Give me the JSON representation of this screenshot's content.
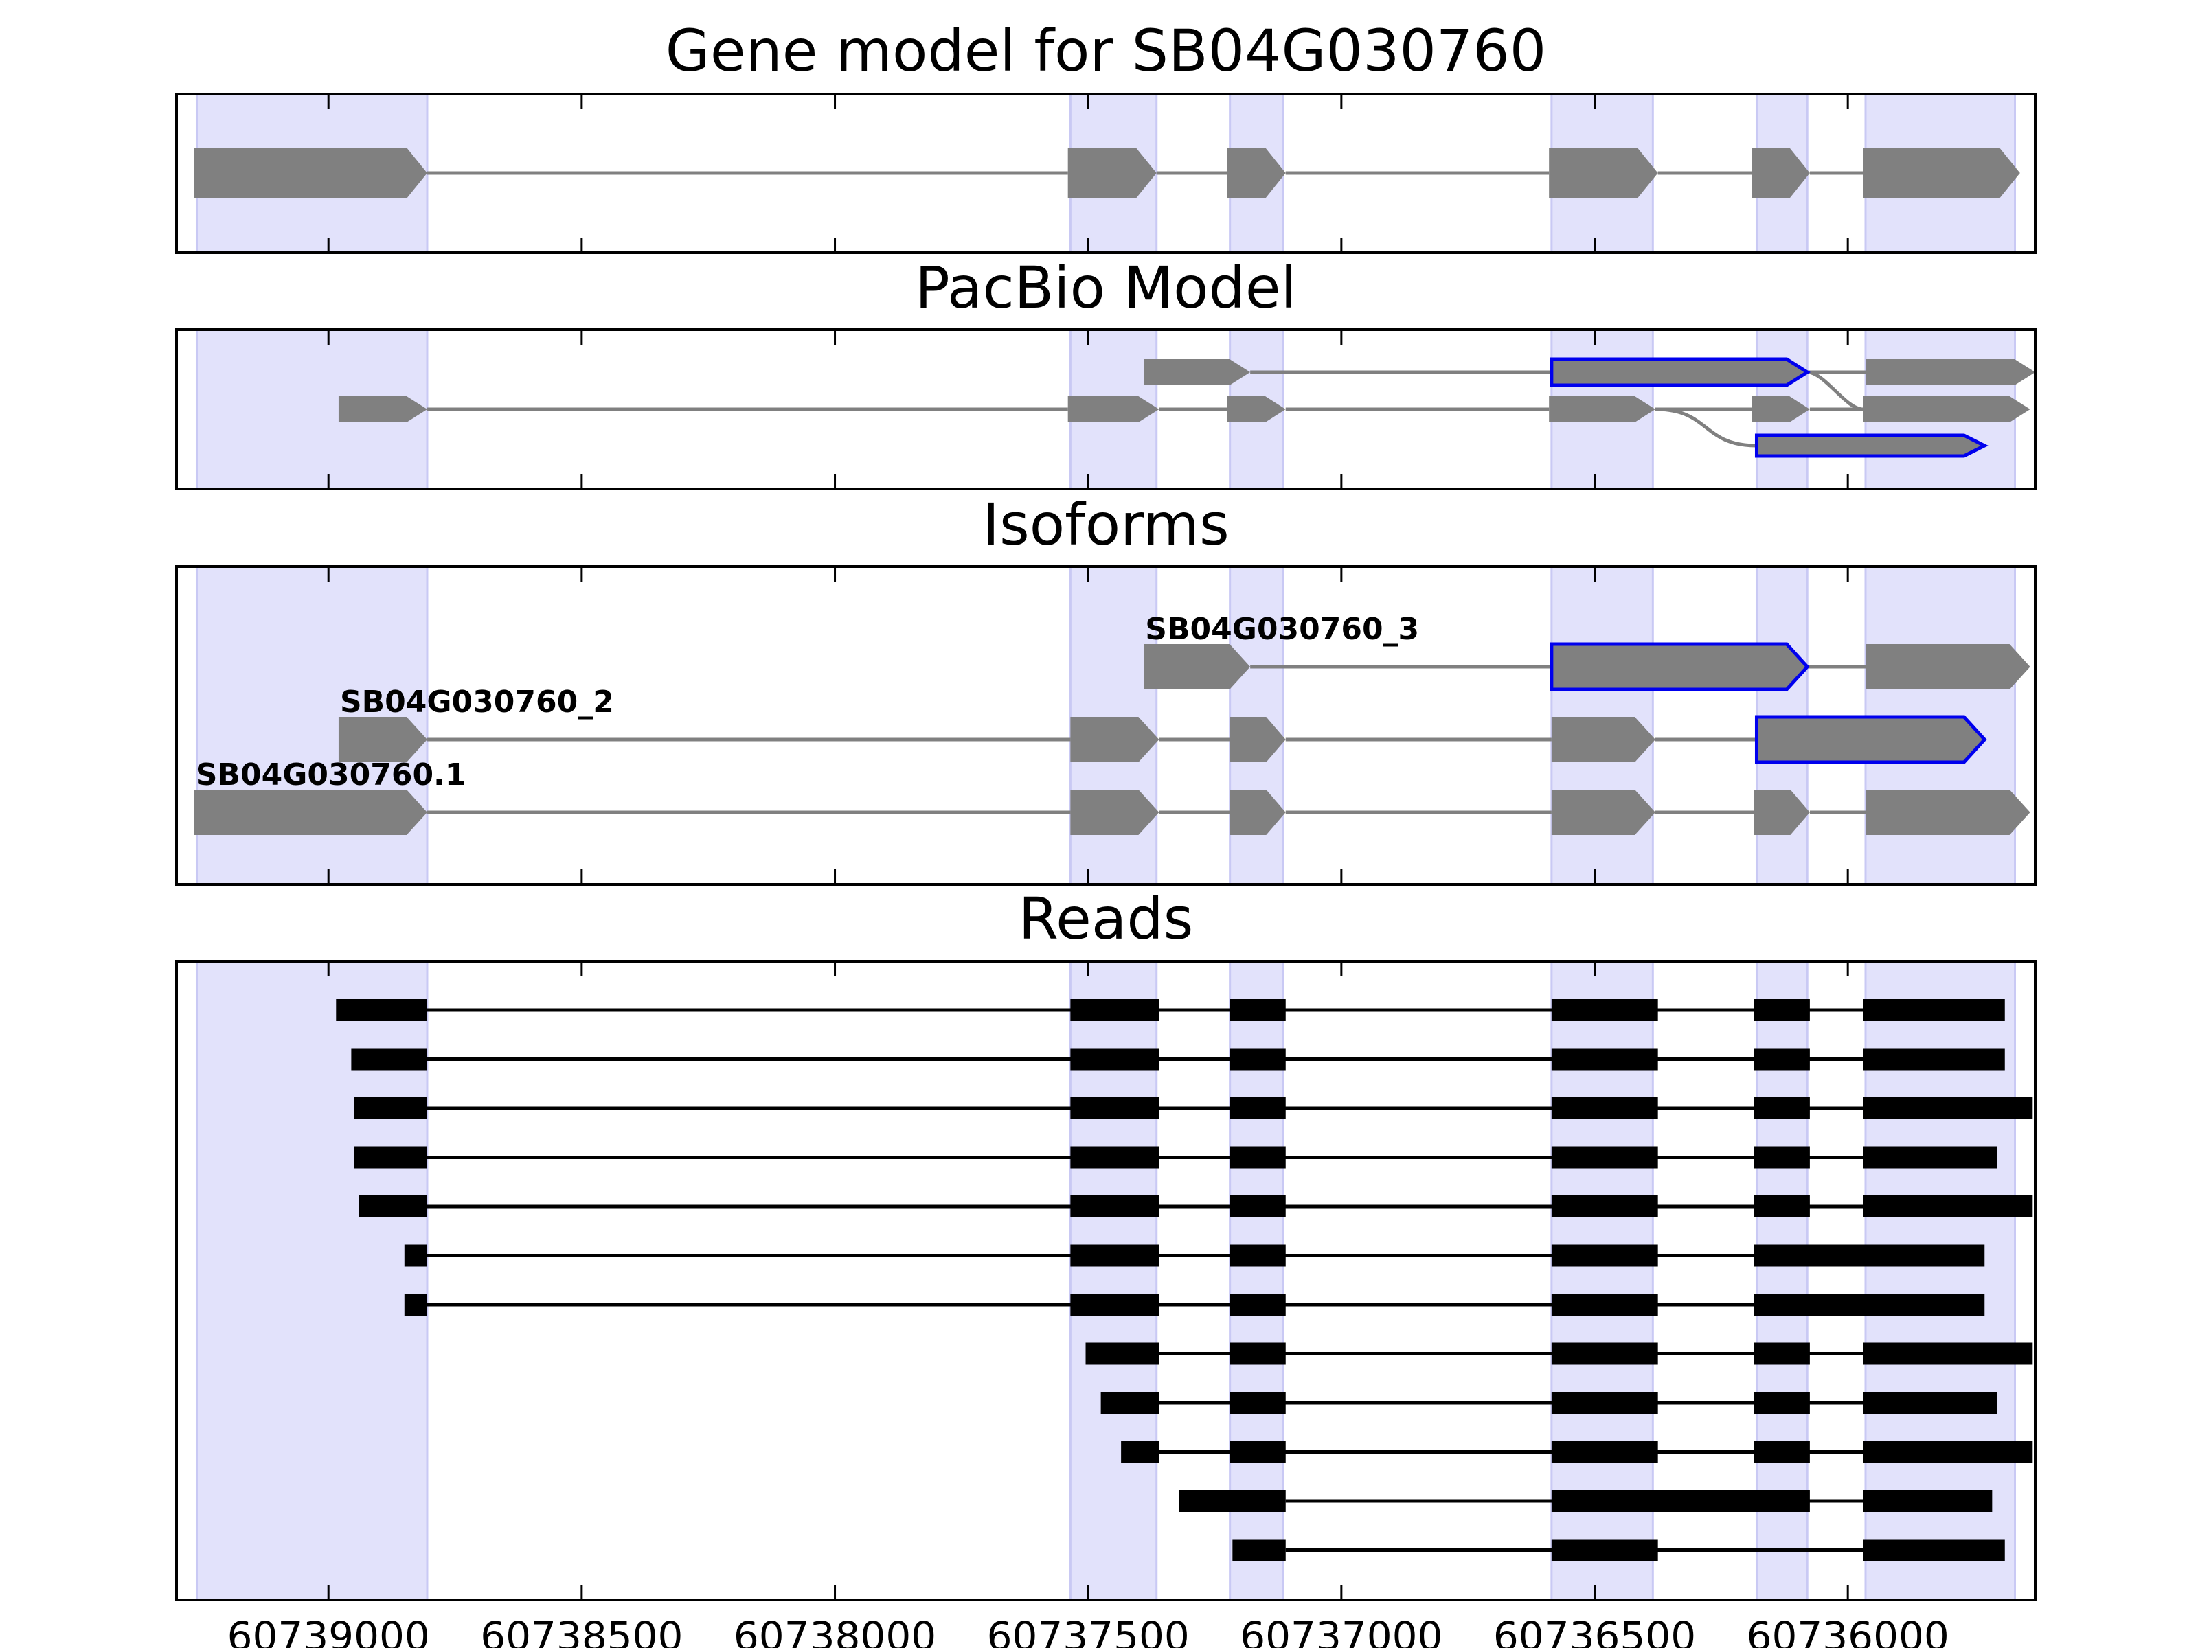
{
  "chart_data": {
    "type": "gene-model-tracks",
    "x_axis": {
      "ticks": [
        60739000,
        60738500,
        60738000,
        60737500,
        60737000,
        60736500,
        60736000
      ],
      "tick_labels": [
        "60739000",
        "60738500",
        "60738000",
        "60737500",
        "60737000",
        "60736500",
        "60736000"
      ],
      "xlim": [
        60739300,
        60735630
      ],
      "reversed": true
    },
    "exon_regions": [
      [
        60739260,
        60738805
      ],
      [
        60737535,
        60737365
      ],
      [
        60737220,
        60737115
      ],
      [
        60736585,
        60736385
      ],
      [
        60736180,
        60736080
      ],
      [
        60735965,
        60735670
      ]
    ],
    "colors": {
      "shading": "#e2e2fb",
      "shading_edge": "#c9c9f4",
      "gene": "#808080",
      "highlight": "#0000ee",
      "read": "#000000",
      "intron": "#808080"
    },
    "panels": [
      {
        "title": "Gene model for SB04G030760",
        "tracks": [
          {
            "exons": [
              [
                60739265,
                60738805
              ],
              [
                60737540,
                60737365
              ],
              [
                60737225,
                60737110
              ],
              [
                60736590,
                60736375
              ],
              [
                60736190,
                60736075
              ],
              [
                60735970,
                60735660
              ]
            ]
          }
        ]
      },
      {
        "title": "PacBio Model",
        "tracks": [
          {
            "exons": [
              [
                60737390,
                60737180
              ],
              [
                60736585,
                60736080
              ],
              [
                60735965,
                60735630
              ]
            ],
            "highlight": [
              1
            ],
            "join_to": 1
          },
          {
            "exons": [
              [
                60738980,
                60738805
              ],
              [
                60737540,
                60737360
              ],
              [
                60737225,
                60737110
              ],
              [
                60736590,
                60736380
              ],
              [
                60736190,
                60736075
              ],
              [
                60735970,
                60735640
              ]
            ]
          },
          {
            "exons": [
              [
                60736180,
                60735730
              ]
            ],
            "highlight": [
              0
            ],
            "join_from": 1
          }
        ]
      },
      {
        "title": "Isoforms",
        "tracks": [
          {
            "label": "SB04G030760_3",
            "exons": [
              [
                60737390,
                60737180
              ],
              [
                60736585,
                60736080
              ],
              [
                60735965,
                60735640
              ]
            ],
            "highlight": [
              1
            ]
          },
          {
            "label": "SB04G030760_2",
            "exons": [
              [
                60738980,
                60738805
              ],
              [
                60737535,
                60737360
              ],
              [
                60737220,
                60737110
              ],
              [
                60736585,
                60736380
              ],
              [
                60736180,
                60735730
              ]
            ],
            "highlight": [
              4
            ]
          },
          {
            "label": "SB04G030760.1",
            "exons": [
              [
                60739265,
                60738805
              ],
              [
                60737535,
                60737360
              ],
              [
                60737220,
                60737110
              ],
              [
                60736585,
                60736380
              ],
              [
                60736185,
                60736075
              ],
              [
                60735965,
                60735640
              ]
            ]
          }
        ]
      },
      {
        "title": "Reads",
        "reads": [
          [
            [
              60738985,
              60738805
            ],
            [
              60737535,
              60737360
            ],
            [
              60737220,
              60737110
            ],
            [
              60736585,
              60736375
            ],
            [
              60736185,
              60736075
            ],
            [
              60735970,
              60735690
            ]
          ],
          [
            [
              60738955,
              60738805
            ],
            [
              60737535,
              60737360
            ],
            [
              60737220,
              60737110
            ],
            [
              60736585,
              60736375
            ],
            [
              60736185,
              60736075
            ],
            [
              60735970,
              60735690
            ]
          ],
          [
            [
              60738950,
              60738805
            ],
            [
              60737535,
              60737360
            ],
            [
              60737220,
              60737110
            ],
            [
              60736585,
              60736375
            ],
            [
              60736185,
              60736075
            ],
            [
              60735970,
              60735635
            ]
          ],
          [
            [
              60738950,
              60738805
            ],
            [
              60737535,
              60737360
            ],
            [
              60737220,
              60737110
            ],
            [
              60736585,
              60736375
            ],
            [
              60736185,
              60736075
            ],
            [
              60735970,
              60735705
            ]
          ],
          [
            [
              60738940,
              60738805
            ],
            [
              60737535,
              60737360
            ],
            [
              60737220,
              60737110
            ],
            [
              60736585,
              60736375
            ],
            [
              60736185,
              60736075
            ],
            [
              60735970,
              60735635
            ]
          ],
          [
            [
              60738850,
              60738805
            ],
            [
              60737535,
              60737360
            ],
            [
              60737220,
              60737110
            ],
            [
              60736585,
              60736375
            ],
            [
              60736185,
              60735730
            ]
          ],
          [
            [
              60738850,
              60738805
            ],
            [
              60737535,
              60737360
            ],
            [
              60737220,
              60737110
            ],
            [
              60736585,
              60736375
            ],
            [
              60736185,
              60735730
            ]
          ],
          [
            [
              60737505,
              60737360
            ],
            [
              60737220,
              60737110
            ],
            [
              60736585,
              60736375
            ],
            [
              60736185,
              60736075
            ],
            [
              60735970,
              60735635
            ]
          ],
          [
            [
              60737475,
              60737360
            ],
            [
              60737220,
              60737110
            ],
            [
              60736585,
              60736375
            ],
            [
              60736185,
              60736075
            ],
            [
              60735970,
              60735705
            ]
          ],
          [
            [
              60737435,
              60737360
            ],
            [
              60737220,
              60737110
            ],
            [
              60736585,
              60736375
            ],
            [
              60736185,
              60736075
            ],
            [
              60735970,
              60735635
            ]
          ],
          [
            [
              60737320,
              60737110
            ],
            [
              60736585,
              60736075
            ],
            [
              60735970,
              60735715
            ]
          ],
          [
            [
              60737215,
              60737110
            ],
            [
              60736585,
              60736375
            ],
            [
              60735970,
              60735690
            ]
          ]
        ]
      }
    ]
  }
}
